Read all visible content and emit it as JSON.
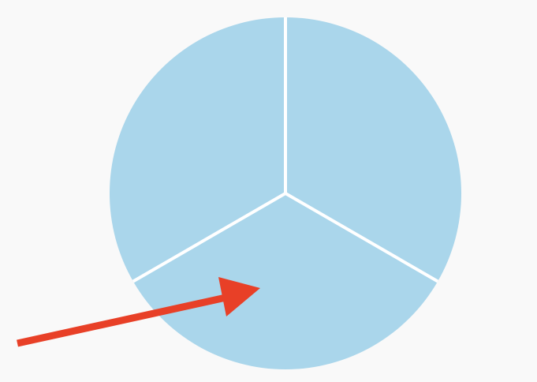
{
  "diagram": {
    "type": "pie-fraction",
    "parts_total": 3,
    "parts_highlighted": 0,
    "pointed_part": 3,
    "colors": {
      "background": "#f9f9f9",
      "slice_fill": "#aad6eb",
      "divider": "#ffffff",
      "arrow": "#e84027"
    },
    "icons": {
      "pointer": "arrow-right-icon"
    }
  }
}
